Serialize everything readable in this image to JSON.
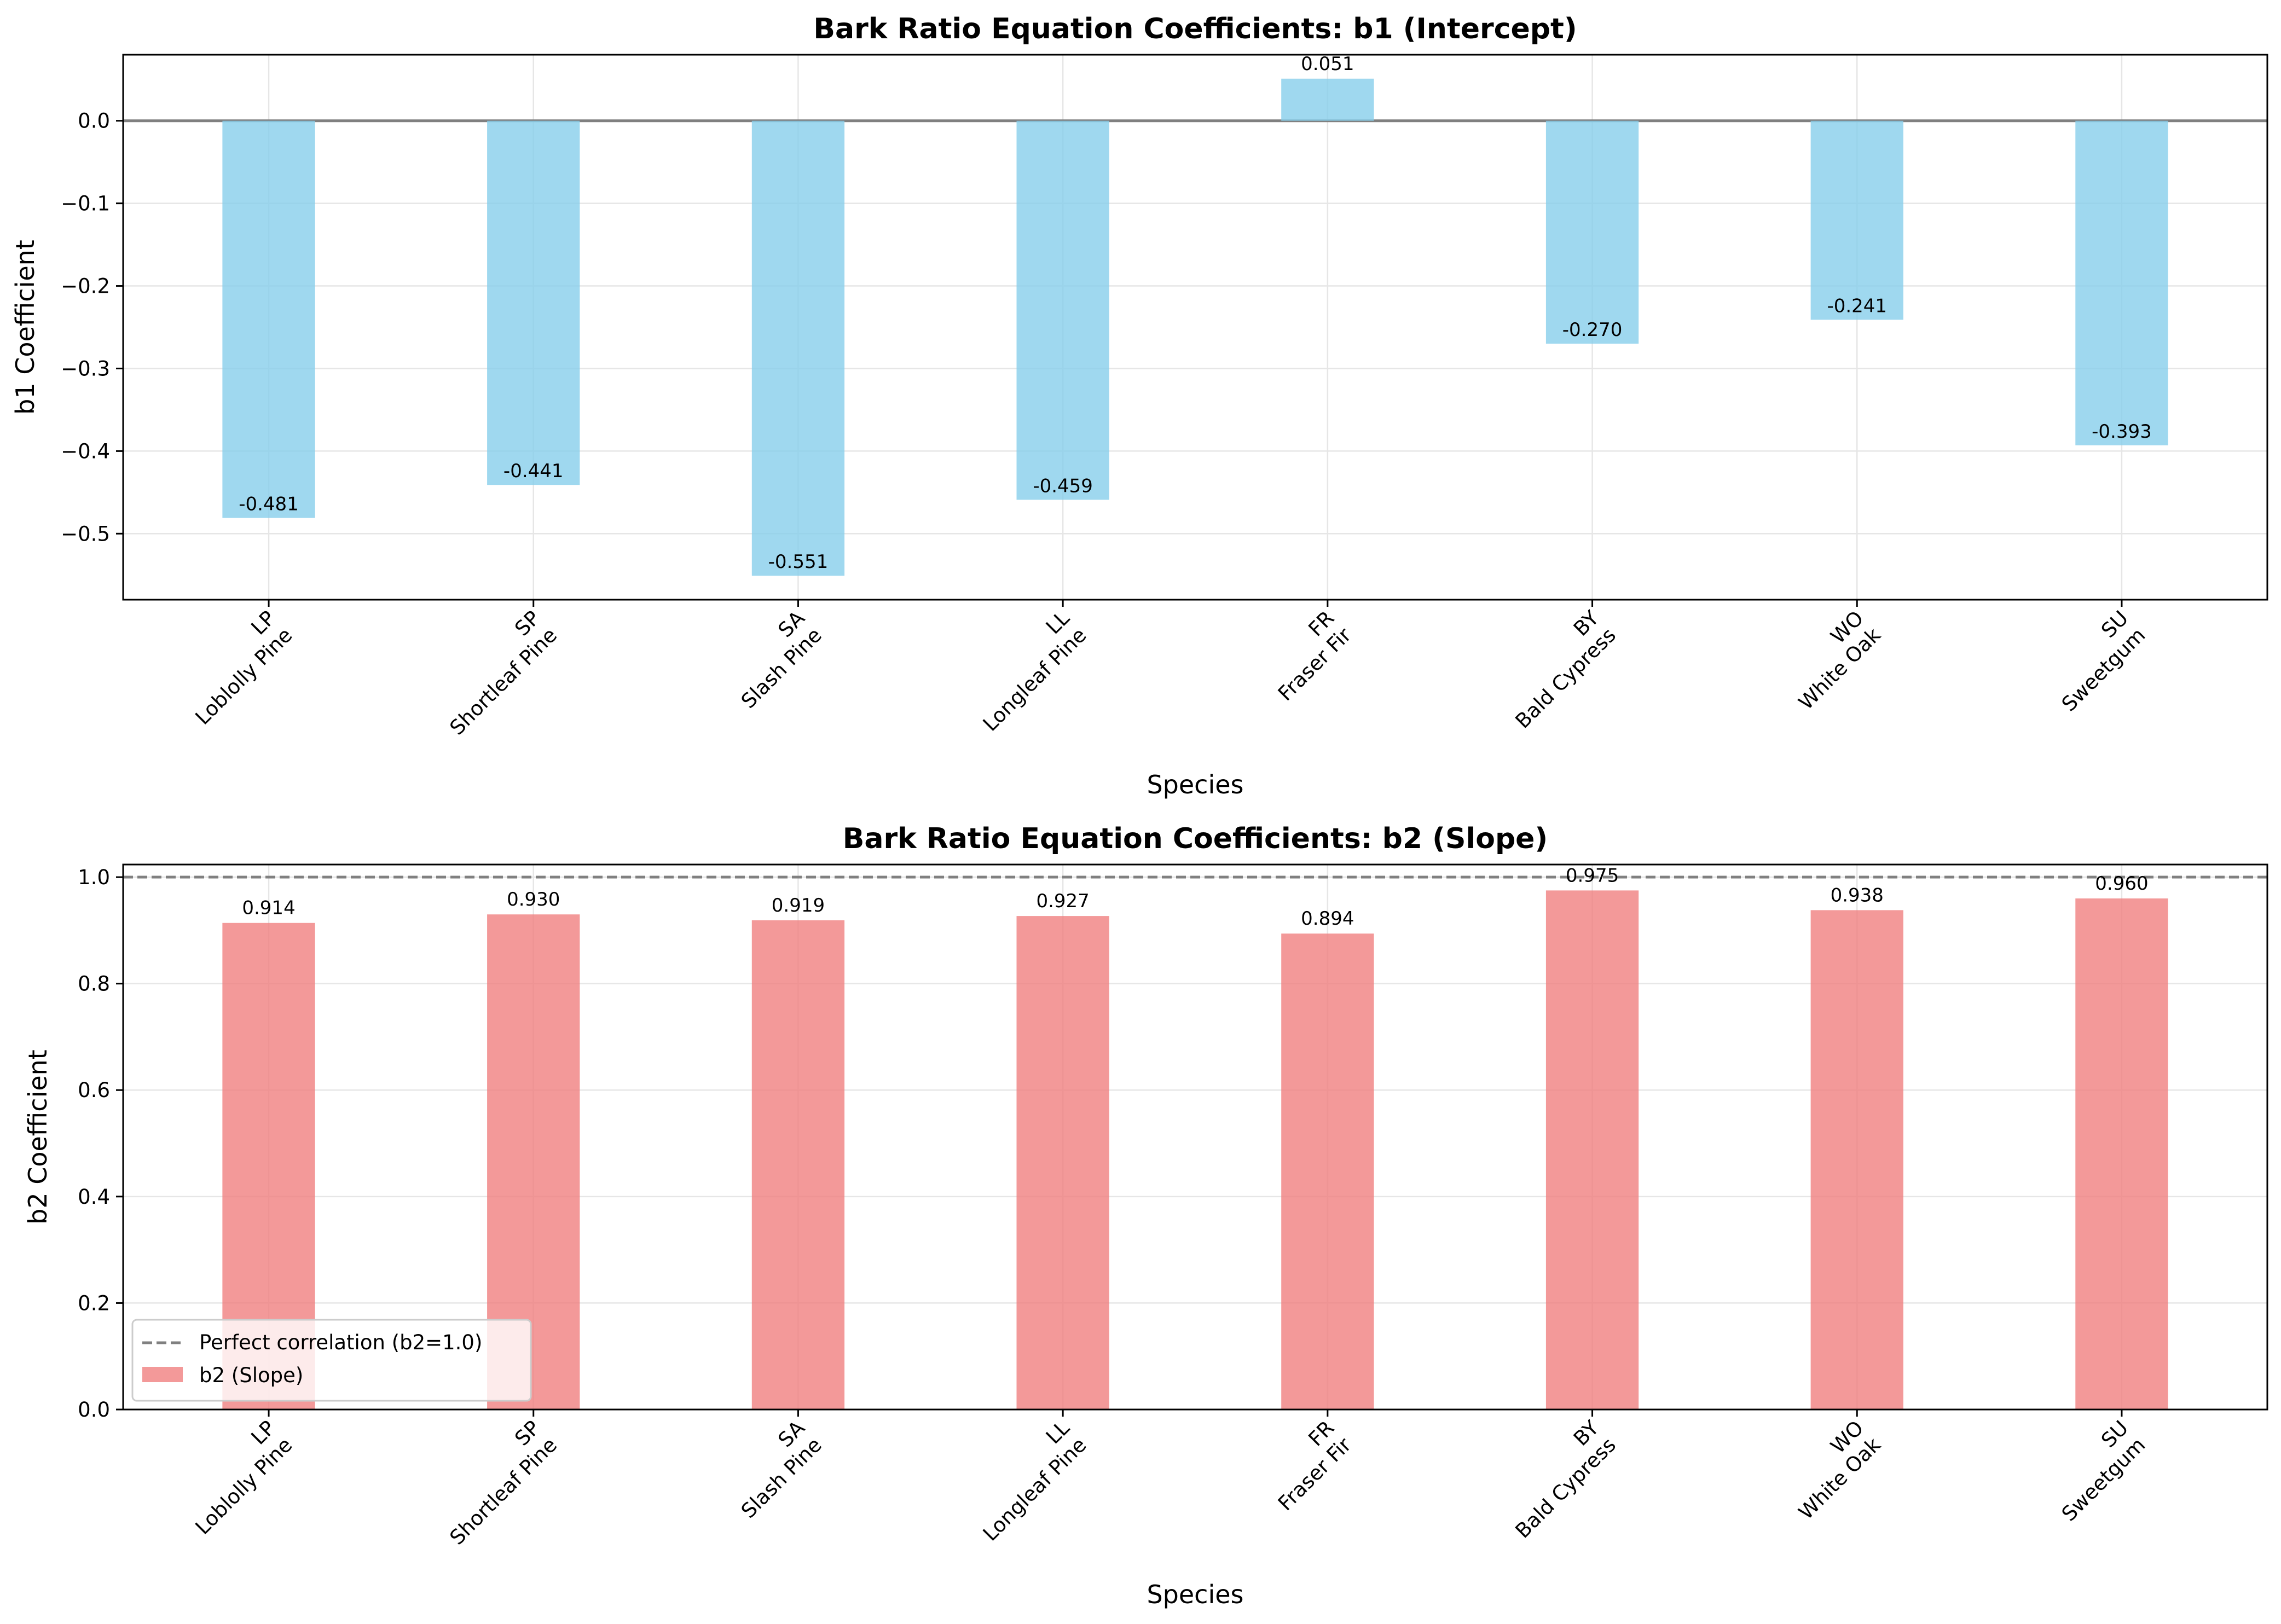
{
  "chart_data": [
    {
      "type": "bar",
      "title": "Bark Ratio Equation Coefficients: b1 (Intercept)",
      "xlabel": "Species",
      "ylabel": "b1 Coefficient",
      "categories": [
        "LP\nLoblolly Pine",
        "SP\nShortleaf Pine",
        "SA\nSlash Pine",
        "LL\nLongleaf Pine",
        "FR\nFraser Fir",
        "BY\nBald Cypress",
        "WO\nWhite Oak",
        "SU\nSweetgum"
      ],
      "series": [
        {
          "values": [
            -0.481,
            -0.441,
            -0.551,
            -0.459,
            0.051,
            -0.27,
            -0.241,
            -0.393
          ],
          "color": "#87ceeb"
        }
      ],
      "data_labels": [
        "-0.481",
        "-0.441",
        "-0.551",
        "-0.459",
        "0.051",
        "-0.270",
        "-0.241",
        "-0.393"
      ],
      "ylim": [
        -0.58,
        0.08
      ],
      "yticks": [
        0.0,
        -0.1,
        -0.2,
        -0.3,
        -0.4,
        -0.5
      ],
      "ytick_labels": [
        "0.0",
        "−0.1",
        "−0.2",
        "−0.3",
        "−0.4",
        "−0.5"
      ],
      "reference_line": {
        "y": 0.0,
        "style": "solid",
        "color": "#808080"
      },
      "grid": true
    },
    {
      "type": "bar",
      "title": "Bark Ratio Equation Coefficients: b2 (Slope)",
      "xlabel": "Species",
      "ylabel": "b2 Coefficient",
      "categories": [
        "LP\nLoblolly Pine",
        "SP\nShortleaf Pine",
        "SA\nSlash Pine",
        "LL\nLongleaf Pine",
        "FR\nFraser Fir",
        "BY\nBald Cypress",
        "WO\nWhite Oak",
        "SU\nSweetgum"
      ],
      "series": [
        {
          "name": "b2 (Slope)",
          "values": [
            0.914,
            0.93,
            0.919,
            0.927,
            0.894,
            0.975,
            0.938,
            0.96
          ],
          "color": "#f08080"
        }
      ],
      "data_labels": [
        "0.914",
        "0.930",
        "0.919",
        "0.927",
        "0.894",
        "0.975",
        "0.938",
        "0.960"
      ],
      "ylim": [
        0.0,
        1.0237
      ],
      "yticks": [
        0.0,
        0.2,
        0.4,
        0.6,
        0.8,
        1.0
      ],
      "ytick_labels": [
        "0.0",
        "0.2",
        "0.4",
        "0.6",
        "0.8",
        "1.0"
      ],
      "reference_line": {
        "y": 1.0,
        "style": "dashed",
        "color": "#808080",
        "label": "Perfect correlation (b2=1.0)"
      },
      "legend": {
        "position": "lower-left",
        "entries": [
          "Perfect correlation (b2=1.0)",
          "b2 (Slope)"
        ]
      },
      "grid": true
    }
  ]
}
